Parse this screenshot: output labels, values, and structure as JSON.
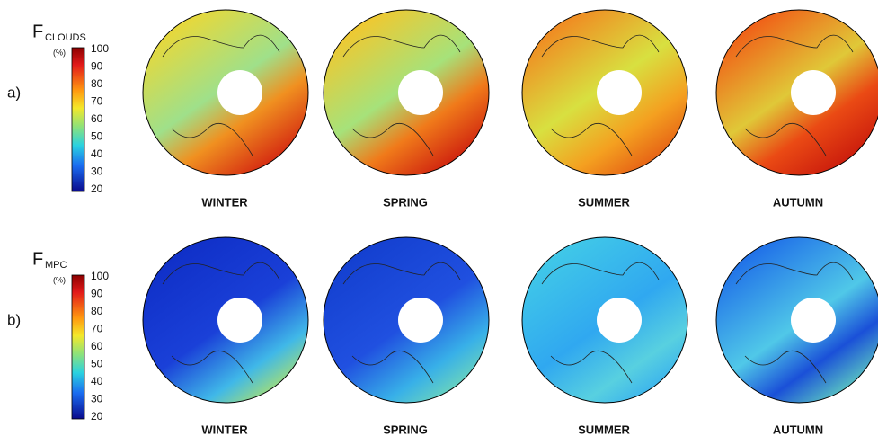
{
  "rows": [
    {
      "label": "a)",
      "variable": "F",
      "subscript": "CLOUDS",
      "unit": "(%)",
      "colorbar_ticks": [
        100,
        90,
        80,
        70,
        60,
        50,
        40,
        30,
        20
      ],
      "panels": [
        "WINTER",
        "SPRING",
        "SUMMER",
        "AUTUMN"
      ]
    },
    {
      "label": "b)",
      "variable": "F",
      "subscript": "MPC",
      "unit": "(%)",
      "colorbar_ticks": [
        100,
        90,
        80,
        70,
        60,
        50,
        40,
        30,
        20
      ],
      "panels": [
        "WINTER",
        "SPRING",
        "SUMMER",
        "AUTUMN"
      ]
    }
  ]
}
